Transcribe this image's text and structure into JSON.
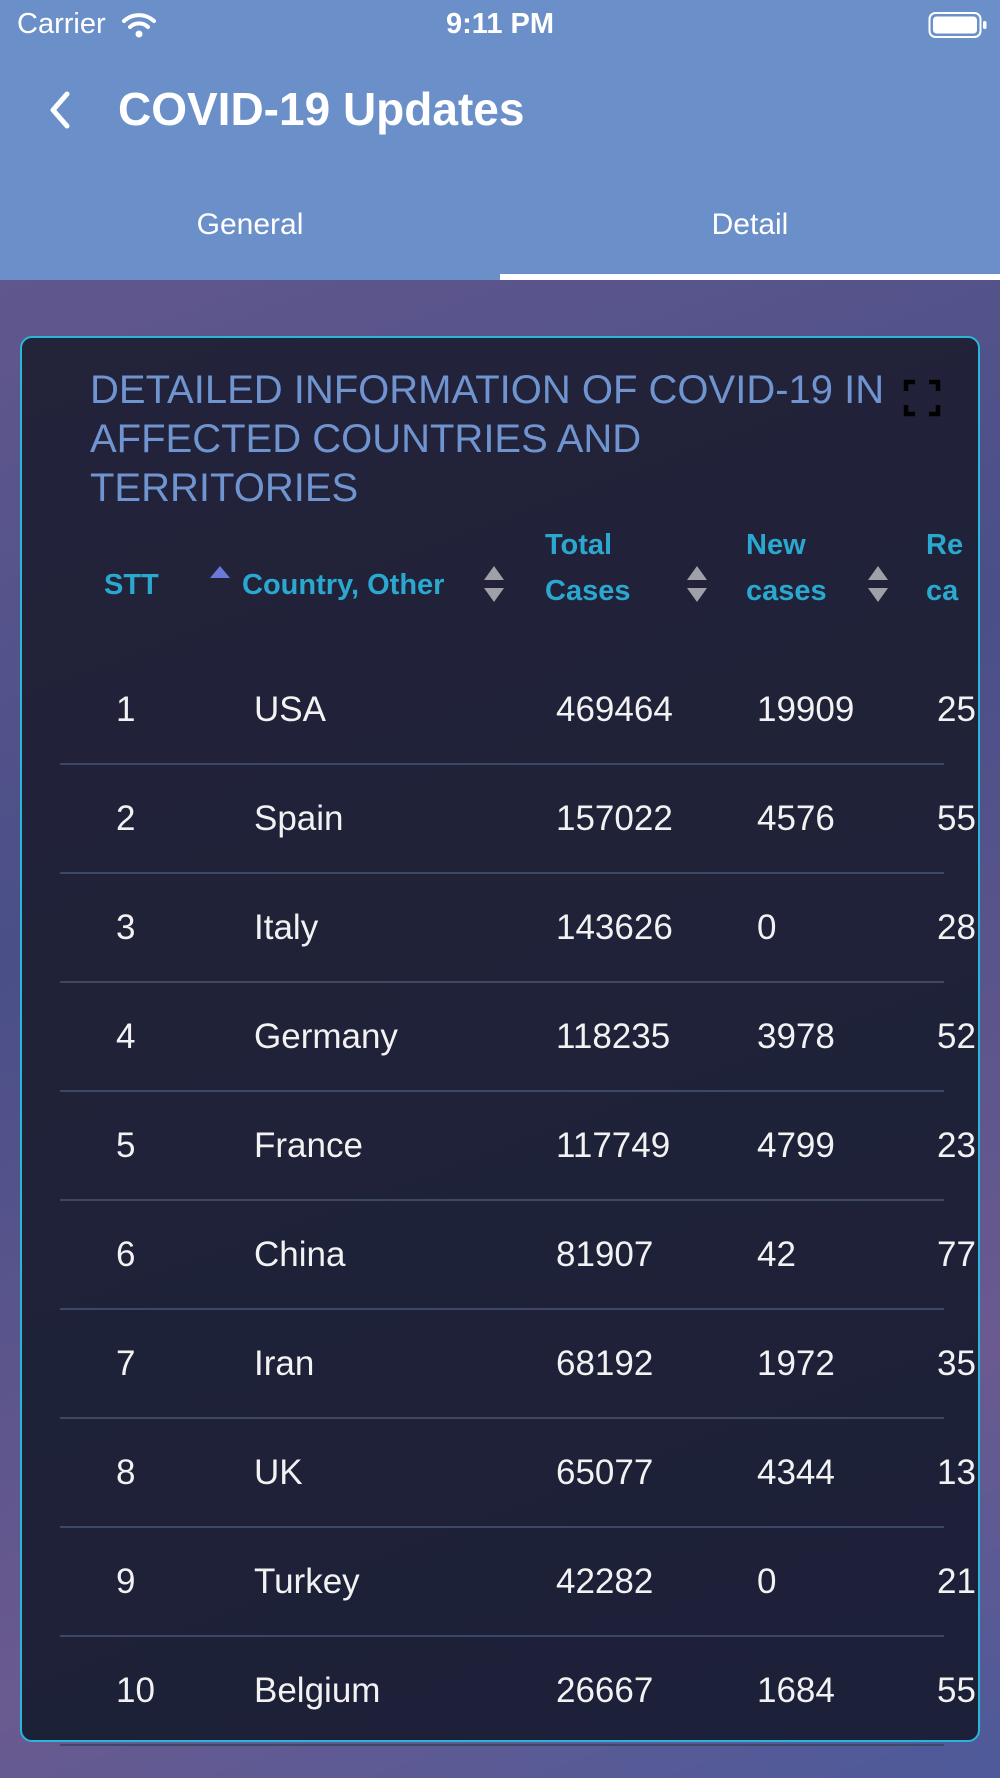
{
  "status_bar": {
    "carrier": "Carrier",
    "time": "9:11 PM"
  },
  "nav": {
    "title": "COVID-19 Updates"
  },
  "tabs": [
    {
      "label": "General",
      "active": false
    },
    {
      "label": "Detail",
      "active": true
    }
  ],
  "card": {
    "title": "DETAILED INFORMATION OF COVID-19 IN AFFECTED COUNTRIES AND TERRITORIES"
  },
  "table": {
    "headers": {
      "stt": "STT",
      "country": "Country, Other",
      "total_line1": "Total",
      "total_line2": "Cases",
      "new_line1": "New",
      "new_line2": "cases",
      "rec_line1": "Re",
      "rec_line2": "ca"
    },
    "rows": [
      {
        "stt": "1",
        "country": "USA",
        "total": "469464",
        "new": "19909",
        "rec": "25"
      },
      {
        "stt": "2",
        "country": "Spain",
        "total": "157022",
        "new": "4576",
        "rec": "55"
      },
      {
        "stt": "3",
        "country": "Italy",
        "total": "143626",
        "new": "0",
        "rec": "28"
      },
      {
        "stt": "4",
        "country": "Germany",
        "total": "118235",
        "new": "3978",
        "rec": "52"
      },
      {
        "stt": "5",
        "country": "France",
        "total": "117749",
        "new": "4799",
        "rec": "23"
      },
      {
        "stt": "6",
        "country": "China",
        "total": "81907",
        "new": "42",
        "rec": "77"
      },
      {
        "stt": "7",
        "country": "Iran",
        "total": "68192",
        "new": "1972",
        "rec": "35"
      },
      {
        "stt": "8",
        "country": "UK",
        "total": "65077",
        "new": "4344",
        "rec": "13"
      },
      {
        "stt": "9",
        "country": "Turkey",
        "total": "42282",
        "new": "0",
        "rec": "21"
      },
      {
        "stt": "10",
        "country": "Belgium",
        "total": "26667",
        "new": "1684",
        "rec": "55"
      }
    ]
  },
  "colors": {
    "header_bg": "#6b8fc9",
    "card_border": "#29b6d8",
    "title_text": "#6f94cf",
    "column_header": "#2aa8d0",
    "sort_active": "#6a78d8"
  }
}
